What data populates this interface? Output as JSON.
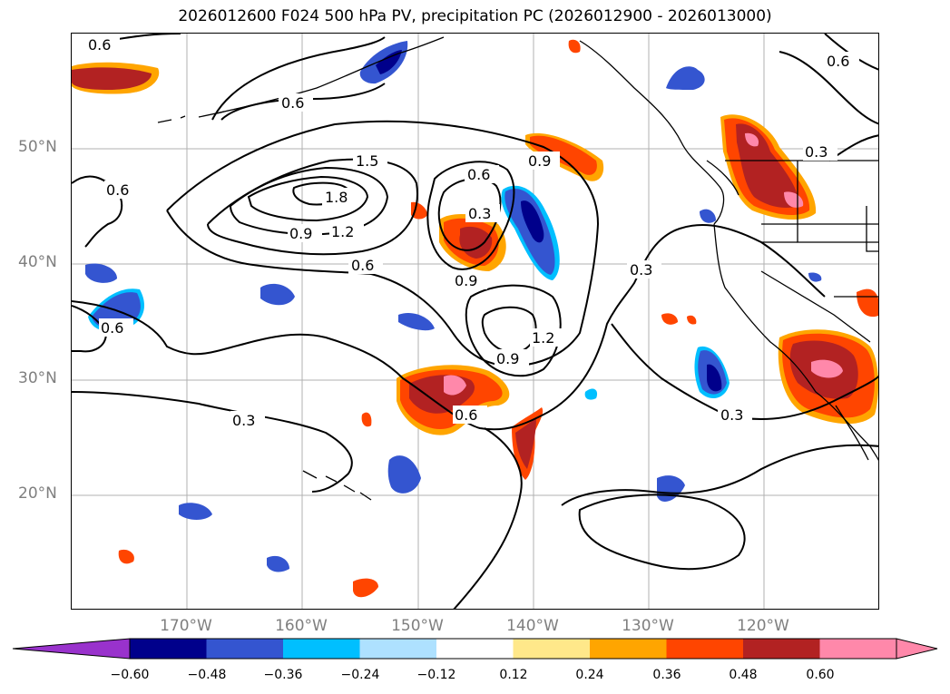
{
  "title": "2026012600 F024 500 hPa PV, precipitation PC (2026012900 - 2026013000)",
  "map": {
    "lat_labels": [
      "50°N",
      "40°N",
      "30°N",
      "20°N"
    ],
    "lon_labels": [
      "170°W",
      "160°W",
      "150°W",
      "140°W",
      "130°W",
      "120°W"
    ],
    "contour_labels": [
      "0.6",
      "0.6",
      "0.6",
      "0.6",
      "0.6",
      "0.6",
      "0.6",
      "0.6",
      "1.5",
      "1.8",
      "1.2",
      "0.9",
      "0.9",
      "0.9",
      "0.9",
      "1.2",
      "0.3",
      "0.3",
      "0.3",
      "0.3",
      "0.3"
    ],
    "contour_color": "#000000",
    "gridline_color": "#b0b0b0",
    "coastline_color": "#000000"
  },
  "colorbar": {
    "colors": [
      "#9932cc",
      "#00008b",
      "#3455d0",
      "#00bfff",
      "#aee1ff",
      "#ffffff",
      "#ffe88a",
      "#ffa500",
      "#ff4500",
      "#b22222",
      "#ff88aa",
      "#ff88aa"
    ],
    "tick_labels": [
      "−0.60",
      "−0.48",
      "−0.36",
      "−0.24",
      "−0.12",
      "0.12",
      "0.24",
      "0.36",
      "0.48",
      "0.60"
    ]
  }
}
